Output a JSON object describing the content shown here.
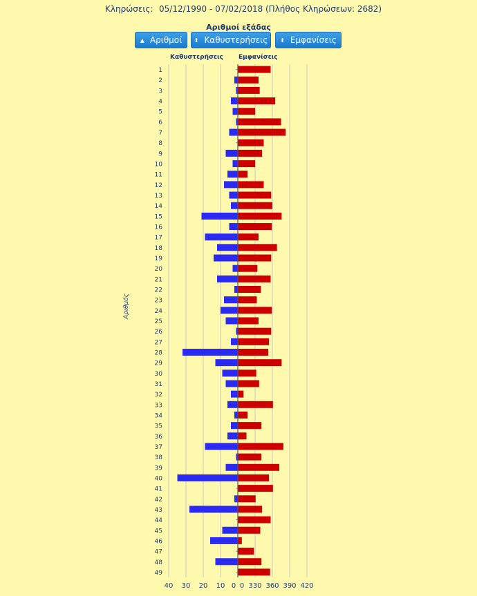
{
  "header": {
    "draws_label": "Κληρώσεις:",
    "date_range": "05/12/1990 - 07/02/2018",
    "count_text": "(Πλήθος Κληρώσεων: 2682)"
  },
  "subtitle": "Αριθμοί εξάδας",
  "buttons": {
    "numbers": "Αριθμοί",
    "delays": "Καθυστερήσεις",
    "appearances": "Εμφανίσεις"
  },
  "colors": {
    "delays": "#2a2af2",
    "appearances": "#cc0000",
    "axis": "#1f3a6b"
  },
  "chart_data": {
    "type": "bar",
    "orientation": "horizontal",
    "ylabel": "Αριθμός",
    "left_header": "Καθυστερήσεις",
    "right_header": "Εμφανίσεις",
    "categories": [
      "1",
      "2",
      "3",
      "4",
      "5",
      "6",
      "7",
      "8",
      "9",
      "10",
      "11",
      "12",
      "13",
      "14",
      "15",
      "16",
      "17",
      "18",
      "19",
      "20",
      "21",
      "22",
      "23",
      "24",
      "25",
      "26",
      "27",
      "28",
      "29",
      "30",
      "31",
      "32",
      "33",
      "34",
      "35",
      "36",
      "37",
      "38",
      "39",
      "40",
      "41",
      "42",
      "43",
      "44",
      "45",
      "46",
      "47",
      "48",
      "49"
    ],
    "left_ticks": [
      "40",
      "30",
      "20",
      "10",
      "0"
    ],
    "right_ticks": [
      "0",
      "330",
      "360",
      "390",
      "420"
    ],
    "series": [
      {
        "name": "Καθυστερήσεις",
        "values": [
          0,
          2,
          1,
          4,
          3,
          1,
          5,
          0,
          7,
          3,
          6,
          8,
          5,
          4,
          21,
          5,
          19,
          12,
          14,
          3,
          12,
          2,
          8,
          10,
          7,
          1,
          4,
          32,
          13,
          9,
          7,
          4,
          6,
          2,
          4,
          6,
          19,
          1,
          7,
          35,
          0,
          2,
          28,
          0,
          9,
          16,
          0,
          13,
          0
        ]
      },
      {
        "name": "Εμφανίσεις",
        "values": [
          357,
          336,
          338,
          365,
          330,
          375,
          383,
          345,
          342,
          330,
          317,
          345,
          358,
          360,
          376,
          359,
          336,
          368,
          358,
          334,
          357,
          340,
          333,
          359,
          336,
          358,
          354,
          353,
          376,
          332,
          337,
          310,
          361,
          317,
          341,
          315,
          379,
          341,
          372,
          354,
          361,
          331,
          342,
          357,
          339,
          307,
          328,
          341,
          356
        ]
      }
    ]
  }
}
